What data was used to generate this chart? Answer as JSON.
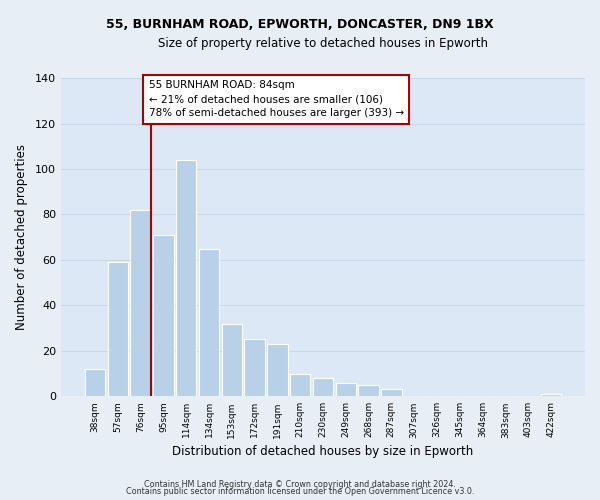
{
  "title1": "55, BURNHAM ROAD, EPWORTH, DONCASTER, DN9 1BX",
  "title2": "Size of property relative to detached houses in Epworth",
  "xlabel": "Distribution of detached houses by size in Epworth",
  "ylabel": "Number of detached properties",
  "categories": [
    "38sqm",
    "57sqm",
    "76sqm",
    "95sqm",
    "114sqm",
    "134sqm",
    "153sqm",
    "172sqm",
    "191sqm",
    "210sqm",
    "230sqm",
    "249sqm",
    "268sqm",
    "287sqm",
    "307sqm",
    "326sqm",
    "345sqm",
    "364sqm",
    "383sqm",
    "403sqm",
    "422sqm"
  ],
  "values": [
    12,
    59,
    82,
    71,
    104,
    65,
    32,
    25,
    23,
    10,
    8,
    6,
    5,
    3,
    0,
    0,
    0,
    0,
    0,
    0,
    1
  ],
  "bar_color": "#b8d0e8",
  "bar_edge_color": "#b8d0e8",
  "annotation_box_text_line1": "55 BURNHAM ROAD: 84sqm",
  "annotation_box_text_line2": "← 21% of detached houses are smaller (106)",
  "annotation_box_text_line3": "78% of semi-detached houses are larger (393) →",
  "ylim": [
    0,
    140
  ],
  "yticks": [
    0,
    20,
    40,
    60,
    80,
    100,
    120,
    140
  ],
  "footer1": "Contains HM Land Registry data © Crown copyright and database right 2024.",
  "footer2": "Contains public sector information licensed under the Open Government Licence v3.0.",
  "background_color": "#e8eef5",
  "plot_bg_color": "#dce8f5",
  "box_color": "#ffffff",
  "red_line_color": "#aa0000",
  "grid_color": "#c8d8e8",
  "title1_fontsize": 9,
  "title2_fontsize": 8.5
}
